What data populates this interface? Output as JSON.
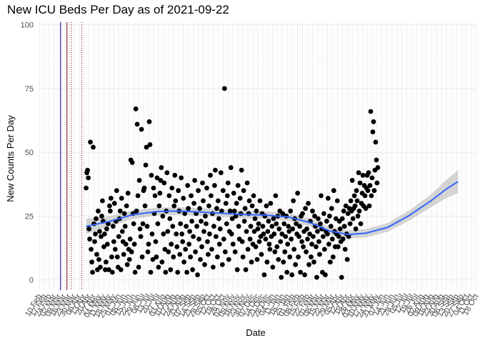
{
  "chart_data": {
    "type": "scatter",
    "title": "New ICU Beds Per Day as of 2021-09-22",
    "xlabel": "Date",
    "ylabel": "New Counts Per Day",
    "ylim": [
      -4,
      101
    ],
    "y_ticks": [
      0,
      25,
      50,
      75,
      100
    ],
    "x_date_range": [
      "2020-02-10",
      "2021-10-18"
    ],
    "x_ticks": [
      "10 Feb",
      "17 Feb",
      "24 Feb",
      "02 Mar",
      "09 Mar",
      "16 Mar",
      "23 Mar",
      "30 Mar",
      "06 Apr",
      "13 Apr",
      "20 Apr",
      "27 Apr",
      "04 May",
      "11 May",
      "18 May",
      "25 May",
      "01 Jun",
      "08 Jun",
      "15 Jun",
      "22 Jun",
      "29 Jun",
      "06 Jul",
      "13 Jul",
      "20 Jul",
      "27 Jul",
      "03 Aug",
      "10 Aug",
      "17 Aug",
      "24 Aug",
      "31 Aug",
      "07 Sep",
      "14 Sep",
      "21 Sep",
      "28 Sep",
      "05 Oct",
      "12 Oct",
      "19 Oct",
      "26 Oct",
      "02 Nov",
      "09 Nov",
      "16 Nov",
      "23 Nov",
      "30 Nov",
      "07 Dec",
      "14 Dec",
      "21 Dec",
      "28 Dec",
      "04 Jan",
      "11 Jan",
      "18 Jan",
      "25 Jan",
      "01 Feb",
      "08 Feb",
      "15 Feb",
      "22 Feb",
      "01 Mar",
      "08 Mar",
      "15 Mar",
      "22 Mar",
      "29 Mar",
      "05 Apr",
      "12 Apr",
      "19 Apr",
      "26 Apr",
      "03 May",
      "10 May",
      "17 May",
      "24 May",
      "31 May",
      "07 Jun",
      "14 Jun",
      "21 Jun",
      "28 Jun",
      "05 Jul",
      "12 Jul",
      "19 Jul",
      "26 Jul",
      "02 Aug",
      "09 Aug",
      "16 Aug",
      "23 Aug",
      "30 Aug",
      "06 Sep",
      "13 Sep",
      "20 Sep",
      "27 Sep",
      "04 Oct",
      "11 Oct",
      "18 Oct"
    ],
    "vlines": [
      {
        "date": "2020-03-11",
        "color": "#00008b",
        "style": "solid"
      },
      {
        "date": "2020-03-20",
        "color": "#8b0000",
        "style": "solid"
      },
      {
        "date": "2020-03-26",
        "color": "#8b0000",
        "style": "dotted"
      },
      {
        "date": "2020-04-10",
        "color": "#8b0000",
        "style": "dotted"
      }
    ],
    "points": {
      "start_date": "2020-04-16",
      "step_days": 1,
      "values": [
        36,
        42,
        43,
        40,
        20,
        16,
        54,
        12,
        7,
        3,
        52,
        22,
        15,
        18,
        24,
        10,
        4,
        27,
        8,
        19,
        5,
        17,
        25,
        31,
        23,
        13,
        18,
        4,
        7,
        20,
        14,
        22,
        4,
        29,
        27,
        32,
        9,
        3,
        21,
        15,
        30,
        12,
        23,
        35,
        9,
        5,
        17,
        24,
        27,
        4,
        32,
        19,
        15,
        10,
        26,
        21,
        14,
        29,
        6,
        34,
        12,
        8,
        16,
        47,
        11,
        46,
        26,
        22,
        14,
        3,
        67,
        27,
        61,
        33,
        5,
        39,
        20,
        17,
        59,
        9,
        22,
        35,
        36,
        29,
        45,
        52,
        21,
        11,
        14,
        62,
        53,
        3,
        41,
        18,
        8,
        36,
        26,
        33,
        15,
        9,
        40,
        22,
        5,
        29,
        34,
        39,
        44,
        7,
        25,
        18,
        38,
        12,
        3,
        27,
        42,
        19,
        11,
        33,
        24,
        4,
        14,
        36,
        21,
        9,
        29,
        41,
        31,
        18,
        13,
        3,
        35,
        27,
        10,
        22,
        40,
        18,
        15,
        32,
        7,
        26,
        12,
        21,
        3,
        37,
        28,
        14,
        19,
        9,
        33,
        23,
        4,
        17,
        30,
        39,
        11,
        26,
        21,
        2,
        35,
        16,
        28,
        8,
        23,
        13,
        38,
        31,
        19,
        6,
        25,
        22,
        36,
        15,
        10,
        29,
        18,
        41,
        33,
        12,
        26,
        5,
        21,
        37,
        43,
        17,
        28,
        9,
        31,
        24,
        14,
        20,
        42,
        27,
        6,
        35,
        16,
        75,
        11,
        30,
        22,
        33,
        38,
        8,
        19,
        27,
        44,
        18,
        24,
        14,
        34,
        27,
        11,
        25,
        30,
        4,
        37,
        21,
        16,
        32,
        26,
        43,
        15,
        9,
        35,
        23,
        28,
        4,
        19,
        38,
        12,
        26,
        31,
        16,
        21,
        7,
        29,
        14,
        33,
        19,
        24,
        13,
        27,
        8,
        20,
        22,
        15,
        31,
        17,
        10,
        26,
        21,
        18,
        2,
        25,
        16,
        29,
        7,
        19,
        23,
        14,
        12,
        30,
        17,
        21,
        5,
        24,
        18,
        11,
        33,
        22,
        13,
        25,
        8,
        20,
        27,
        15,
        1,
        18,
        26,
        7,
        22,
        11,
        17,
        25,
        3,
        14,
        21,
        19,
        9,
        27,
        16,
        2,
        20,
        31,
        12,
        24,
        6,
        22,
        18,
        34,
        9,
        17,
        21,
        3,
        25,
        15,
        26,
        13,
        19,
        2,
        28,
        11,
        20,
        16,
        30,
        6,
        18,
        23,
        9,
        14,
        27,
        17,
        7,
        25,
        21,
        13,
        1,
        19,
        24,
        15,
        10,
        22,
        33,
        20,
        3,
        17,
        26,
        12,
        2,
        19,
        23,
        18,
        32,
        14,
        25,
        7,
        21,
        28,
        16,
        9,
        35,
        19,
        13,
        24,
        18,
        31,
        13,
        17,
        23,
        20,
        15,
        1,
        24,
        16,
        27,
        21,
        12,
        29,
        18,
        8,
        26,
        17,
        28,
        22,
        31,
        27,
        39,
        24,
        28,
        33,
        29,
        20,
        35,
        31,
        25,
        42,
        27,
        38,
        22,
        30,
        34,
        41,
        29,
        37,
        33,
        28,
        36,
        41,
        35,
        42,
        29,
        37,
        66,
        33,
        40,
        58,
        62,
        35,
        43,
        54,
        47,
        38,
        44
      ],
      "color": "#000000"
    },
    "trend": {
      "type": "loess",
      "color": "#3366ff",
      "band_color": "#999999",
      "points": [
        {
          "date": "2020-04-16",
          "y": 21,
          "lo": 18,
          "hi": 24
        },
        {
          "date": "2020-05-20",
          "y": 23,
          "lo": 21,
          "hi": 25
        },
        {
          "date": "2020-06-20",
          "y": 25.5,
          "lo": 23.8,
          "hi": 27.2
        },
        {
          "date": "2020-07-25",
          "y": 26.8,
          "lo": 25.3,
          "hi": 28.3
        },
        {
          "date": "2020-08-25",
          "y": 27,
          "lo": 25.5,
          "hi": 28.5
        },
        {
          "date": "2020-09-25",
          "y": 26.6,
          "lo": 25.1,
          "hi": 28.1
        },
        {
          "date": "2020-10-25",
          "y": 26.1,
          "lo": 24.6,
          "hi": 27.6
        },
        {
          "date": "2020-11-25",
          "y": 25.6,
          "lo": 24.1,
          "hi": 27.1
        },
        {
          "date": "2020-12-25",
          "y": 25.4,
          "lo": 23.9,
          "hi": 26.9
        },
        {
          "date": "2021-01-25",
          "y": 24.7,
          "lo": 23.2,
          "hi": 26.2
        },
        {
          "date": "2021-02-25",
          "y": 22.5,
          "lo": 21,
          "hi": 24
        },
        {
          "date": "2021-03-25",
          "y": 19.2,
          "lo": 17.6,
          "hi": 20.8
        },
        {
          "date": "2021-04-20",
          "y": 17.8,
          "lo": 16.2,
          "hi": 19.4
        },
        {
          "date": "2021-05-15",
          "y": 18.3,
          "lo": 16.7,
          "hi": 19.9
        },
        {
          "date": "2021-06-15",
          "y": 20.6,
          "lo": 18.9,
          "hi": 22.3
        },
        {
          "date": "2021-07-15",
          "y": 25.2,
          "lo": 23.2,
          "hi": 27.2
        },
        {
          "date": "2021-08-15",
          "y": 31,
          "lo": 28.5,
          "hi": 33.5
        },
        {
          "date": "2021-09-05",
          "y": 35.5,
          "lo": 32,
          "hi": 39
        },
        {
          "date": "2021-09-22",
          "y": 38.5,
          "lo": 34,
          "hi": 43
        }
      ]
    }
  }
}
